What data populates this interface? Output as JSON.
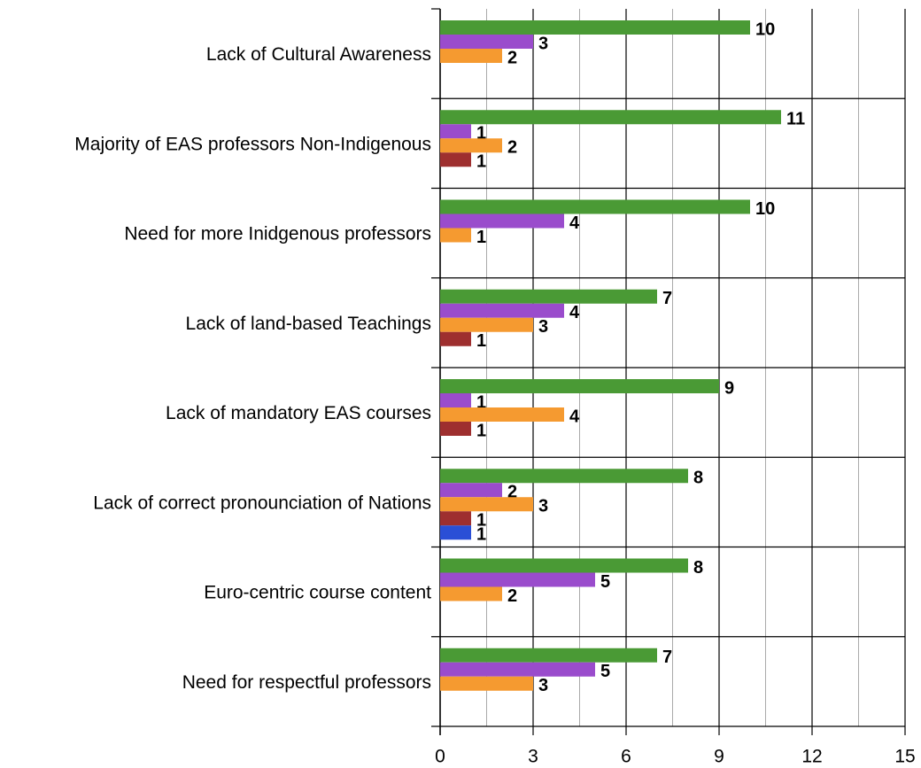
{
  "chart_data": {
    "type": "bar",
    "orientation": "horizontal",
    "categories": [
      "Lack of Cultural Awareness",
      "Majority of EAS professors Non-Indigenous",
      "Need for more Inidgenous professors",
      "Lack of land-based Teachings",
      "Lack of mandatory EAS courses",
      "Lack of correct pronounciation of Nations",
      "Euro-centric course content",
      "Need for respectful professors"
    ],
    "series": [
      {
        "color": "#4a9a35",
        "values": [
          10,
          11,
          10,
          7,
          9,
          8,
          8,
          7
        ]
      },
      {
        "color": "#9a4ccc",
        "values": [
          3,
          1,
          4,
          4,
          1,
          2,
          5,
          5
        ]
      },
      {
        "color": "#f59a30",
        "values": [
          2,
          2,
          1,
          3,
          4,
          3,
          2,
          3
        ]
      },
      {
        "color": "#9e2f2f",
        "values": [
          null,
          1,
          null,
          1,
          1,
          1,
          null,
          null
        ]
      },
      {
        "color": "#2a4fd6",
        "values": [
          null,
          null,
          null,
          null,
          null,
          1,
          null,
          null
        ]
      }
    ],
    "xlim": [
      0,
      15
    ],
    "xticks": [
      0,
      3,
      6,
      9,
      12,
      15
    ],
    "grid": true
  }
}
